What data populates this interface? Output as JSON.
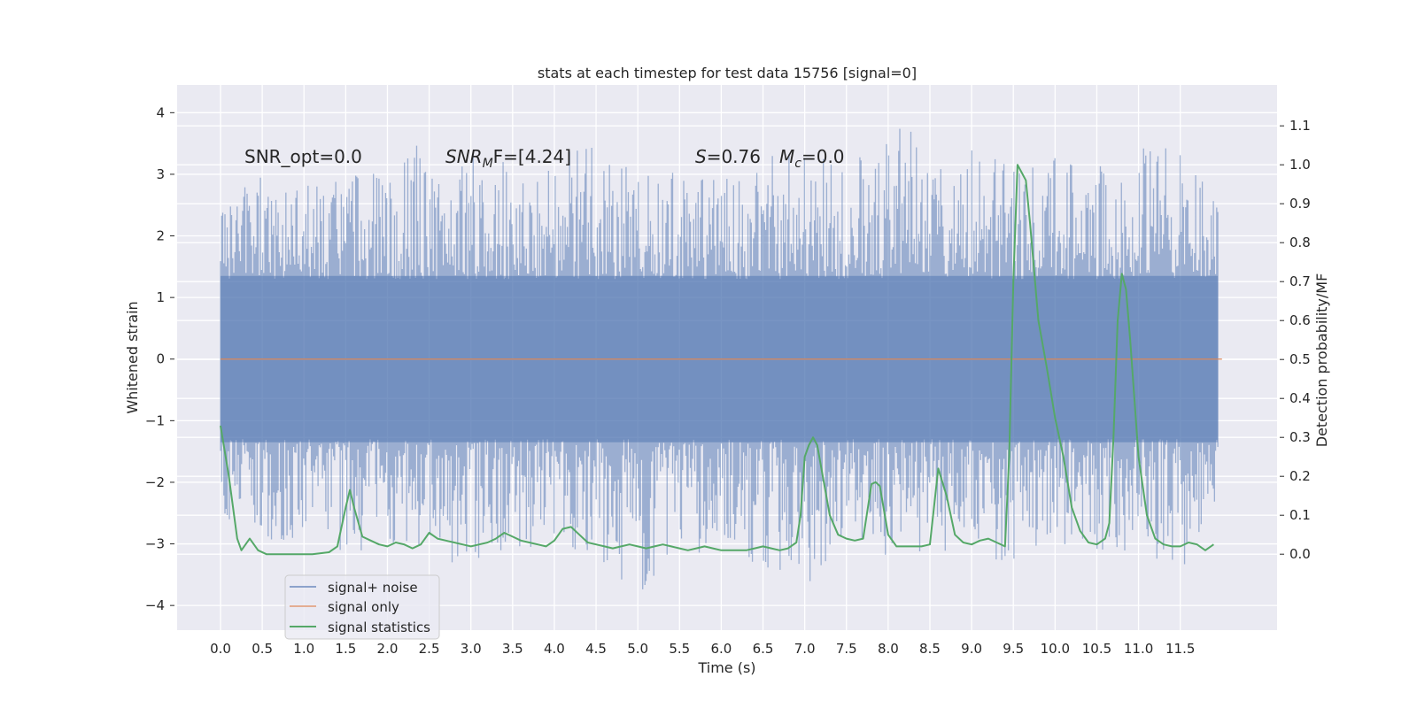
{
  "chart_data": {
    "type": "line",
    "title": "stats at each timestep for test data 15756 [signal=0]",
    "xlabel": "Time (s)",
    "ylabel": "Whitened strain",
    "y2label": "Detection probability/MF",
    "xlim": [
      -0.52,
      12.66
    ],
    "ylim": [
      -4.4,
      4.45
    ],
    "y2lim": [
      -0.195,
      1.205
    ],
    "x_ticks": [
      "0.0",
      "0.5",
      "1.0",
      "1.5",
      "2.0",
      "2.5",
      "3.0",
      "3.5",
      "4.0",
      "4.5",
      "5.0",
      "5.5",
      "6.0",
      "6.5",
      "7.0",
      "7.5",
      "8.0",
      "8.5",
      "9.0",
      "9.5",
      "10.0",
      "10.5",
      "11.0",
      "11.5"
    ],
    "y_ticks": [
      "−4",
      "−3",
      "−2",
      "−1",
      "0",
      "1",
      "2",
      "3",
      "4"
    ],
    "y2_ticks": [
      "0.0",
      "0.1",
      "0.2",
      "0.3",
      "0.4",
      "0.5",
      "0.6",
      "0.7",
      "0.8",
      "0.9",
      "1.0",
      "1.1"
    ],
    "grid": true,
    "legend_position": "lower-left",
    "annotations": {
      "snr_opt": "SNR_opt=0.0",
      "snr_mf_main": "SNR",
      "snr_mf_sub": "M",
      "snr_mf_rest": "F=[4.24]",
      "s_label": "S",
      "s_value": "=0.76",
      "mc_label": "M",
      "mc_sub": "c",
      "mc_value": "=0.0"
    },
    "colors": {
      "background": "#EAEAF2",
      "grid": "#FFFFFF",
      "noise": "#4C72B0",
      "signal_only": "#DD8452",
      "statistics": "#55A868"
    },
    "series": [
      {
        "name": "signal+ noise",
        "axis": "left",
        "color": "#4C72B0",
        "x_range": [
          0.0,
          12.0
        ],
        "envelope": {
          "t": [
            0.0,
            0.5,
            1.0,
            1.5,
            2.0,
            2.2,
            2.5,
            3.0,
            3.5,
            4.0,
            4.5,
            5.0,
            5.5,
            6.0,
            6.5,
            7.0,
            7.5,
            8.0,
            8.2,
            8.5,
            9.0,
            9.5,
            10.0,
            10.5,
            11.0,
            11.5,
            11.95
          ],
          "upper": [
            2.5,
            3.0,
            2.9,
            3.1,
            3.0,
            3.9,
            3.1,
            3.4,
            3.3,
            3.2,
            3.7,
            3.0,
            3.1,
            3.0,
            3.4,
            3.3,
            3.3,
            3.5,
            4.1,
            3.1,
            3.5,
            3.3,
            3.3,
            3.2,
            3.5,
            3.4,
            2.8
          ],
          "lower": [
            -2.6,
            -3.1,
            -3.0,
            -3.2,
            -3.0,
            -3.1,
            -3.3,
            -3.3,
            -3.1,
            -3.0,
            -3.2,
            -3.9,
            -3.3,
            -3.0,
            -3.4,
            -3.8,
            -3.0,
            -3.3,
            -3.4,
            -3.2,
            -3.2,
            -3.3,
            -3.0,
            -3.3,
            -3.1,
            -3.5,
            -2.5
          ]
        }
      },
      {
        "name": "signal only",
        "axis": "left",
        "color": "#DD8452",
        "x": [
          0.0,
          12.0
        ],
        "y": [
          0.0,
          0.0
        ]
      },
      {
        "name": "signal statistics",
        "axis": "right",
        "color": "#55A868",
        "x": [
          0.0,
          0.1,
          0.2,
          0.25,
          0.35,
          0.45,
          0.55,
          0.7,
          0.9,
          1.1,
          1.3,
          1.4,
          1.5,
          1.55,
          1.6,
          1.7,
          1.8,
          1.9,
          2.0,
          2.1,
          2.2,
          2.3,
          2.4,
          2.5,
          2.6,
          2.7,
          2.8,
          2.9,
          3.0,
          3.1,
          3.2,
          3.3,
          3.4,
          3.5,
          3.6,
          3.7,
          3.8,
          3.9,
          4.0,
          4.1,
          4.2,
          4.3,
          4.4,
          4.5,
          4.6,
          4.7,
          4.8,
          4.9,
          5.0,
          5.1,
          5.2,
          5.3,
          5.4,
          5.5,
          5.6,
          5.7,
          5.8,
          5.9,
          6.0,
          6.1,
          6.2,
          6.3,
          6.4,
          6.5,
          6.6,
          6.7,
          6.8,
          6.9,
          6.95,
          7.0,
          7.05,
          7.1,
          7.15,
          7.2,
          7.3,
          7.4,
          7.5,
          7.6,
          7.7,
          7.8,
          7.85,
          7.9,
          8.0,
          8.1,
          8.2,
          8.3,
          8.4,
          8.5,
          8.6,
          8.7,
          8.8,
          8.9,
          9.0,
          9.1,
          9.2,
          9.3,
          9.4,
          9.45,
          9.5,
          9.55,
          9.6,
          9.65,
          9.7,
          9.8,
          9.9,
          10.0,
          10.1,
          10.2,
          10.3,
          10.4,
          10.5,
          10.6,
          10.65,
          10.7,
          10.75,
          10.8,
          10.85,
          10.9,
          11.0,
          11.1,
          11.2,
          11.3,
          11.4,
          11.5,
          11.6,
          11.7,
          11.8,
          11.9
        ],
        "y": [
          0.33,
          0.2,
          0.04,
          0.01,
          0.04,
          0.01,
          0.0,
          0.0,
          0.0,
          0.0,
          0.005,
          0.02,
          0.12,
          0.165,
          0.12,
          0.045,
          0.035,
          0.025,
          0.02,
          0.03,
          0.025,
          0.015,
          0.025,
          0.055,
          0.04,
          0.035,
          0.03,
          0.025,
          0.02,
          0.025,
          0.03,
          0.04,
          0.055,
          0.045,
          0.035,
          0.03,
          0.025,
          0.02,
          0.035,
          0.065,
          0.07,
          0.05,
          0.03,
          0.025,
          0.02,
          0.015,
          0.02,
          0.025,
          0.02,
          0.015,
          0.02,
          0.025,
          0.02,
          0.015,
          0.01,
          0.015,
          0.02,
          0.015,
          0.01,
          0.01,
          0.01,
          0.01,
          0.015,
          0.02,
          0.015,
          0.01,
          0.015,
          0.03,
          0.1,
          0.25,
          0.28,
          0.3,
          0.28,
          0.22,
          0.1,
          0.05,
          0.04,
          0.035,
          0.04,
          0.18,
          0.185,
          0.175,
          0.05,
          0.02,
          0.02,
          0.02,
          0.02,
          0.025,
          0.22,
          0.15,
          0.05,
          0.03,
          0.025,
          0.035,
          0.04,
          0.03,
          0.02,
          0.25,
          0.7,
          1.0,
          0.98,
          0.96,
          0.85,
          0.6,
          0.48,
          0.35,
          0.25,
          0.12,
          0.06,
          0.03,
          0.025,
          0.04,
          0.08,
          0.3,
          0.6,
          0.72,
          0.68,
          0.55,
          0.25,
          0.1,
          0.04,
          0.025,
          0.02,
          0.02,
          0.03,
          0.025,
          0.01,
          0.025
        ]
      }
    ]
  }
}
